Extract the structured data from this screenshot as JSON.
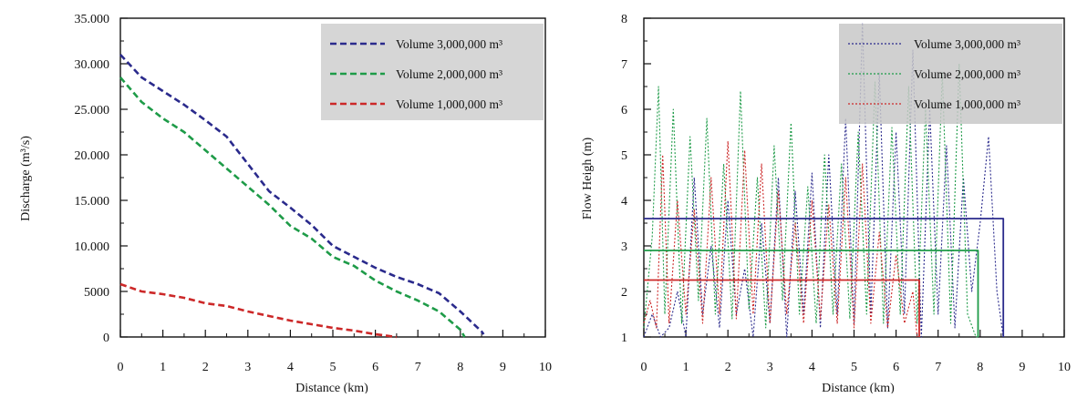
{
  "chart_data": [
    {
      "type": "line",
      "xlabel": "Distance (km)",
      "ylabel": "Discharge (m³/s)",
      "xlim": [
        0,
        10
      ],
      "ylim": [
        0,
        35000
      ],
      "x_ticks": [
        "0",
        "1",
        "2",
        "3",
        "4",
        "5",
        "6",
        "7",
        "8",
        "9",
        "10"
      ],
      "y_ticks": [
        {
          "value": 35000,
          "label": "35.000"
        },
        {
          "value": 30000,
          "label": "30.000"
        },
        {
          "value": 25000,
          "label": "25.000"
        },
        {
          "value": 20000,
          "label": "20.000"
        },
        {
          "value": 15000,
          "label": "15.000"
        },
        {
          "value": 10000,
          "label": "10.000"
        },
        {
          "value": 5000,
          "label": "5000"
        },
        {
          "value": 0,
          "label": "0"
        }
      ],
      "grid": false,
      "legend_position": "top-right",
      "series": [
        {
          "name": "Volume 3,000,000 m³",
          "color": "#2a2a8c",
          "style": "dashed",
          "x": [
            0,
            0.5,
            1,
            1.5,
            2,
            2.5,
            3,
            3.5,
            4,
            4.5,
            5,
            5.5,
            6,
            6.5,
            7,
            7.5,
            8,
            8.5,
            8.55
          ],
          "y": [
            31000,
            28500,
            27000,
            25500,
            23800,
            22000,
            19000,
            16000,
            14200,
            12300,
            10000,
            8800,
            7600,
            6600,
            5800,
            4800,
            2800,
            600,
            300
          ]
        },
        {
          "name": "Volume 2,000,000 m³",
          "color": "#1e9b48",
          "style": "dashed",
          "x": [
            0,
            0.5,
            1,
            1.5,
            2,
            2.5,
            3,
            3.5,
            4,
            4.5,
            5,
            5.5,
            6,
            6.5,
            7,
            7.5,
            8,
            8.1
          ],
          "y": [
            28500,
            25800,
            24000,
            22500,
            20500,
            18500,
            16500,
            14500,
            12200,
            10800,
            8800,
            7800,
            6200,
            5000,
            4000,
            2800,
            800,
            0
          ]
        },
        {
          "name": "Volume 1,000,000 m³",
          "color": "#cc2828",
          "style": "dashed",
          "x": [
            0,
            0.5,
            1,
            1.5,
            2,
            2.5,
            3,
            3.5,
            4,
            4.5,
            5,
            5.5,
            6,
            6.5
          ],
          "y": [
            5800,
            5000,
            4700,
            4300,
            3700,
            3400,
            2800,
            2300,
            1800,
            1400,
            1000,
            700,
            300,
            0
          ]
        }
      ]
    },
    {
      "type": "line",
      "xlabel": "Distance (km)",
      "ylabel": "Flow Heigh (m)",
      "xlim": [
        0,
        10
      ],
      "ylim": [
        1,
        8
      ],
      "x_ticks": [
        "0",
        "1",
        "2",
        "3",
        "4",
        "5",
        "6",
        "7",
        "8",
        "9",
        "10"
      ],
      "y_ticks": [
        "1",
        "2",
        "3",
        "4",
        "5",
        "6",
        "7",
        "8"
      ],
      "grid": false,
      "legend_position": "top-right",
      "series": [
        {
          "name": "Volume 3,000,000 m³",
          "color": "#2a2a8c",
          "style": "dotted",
          "x": [
            0,
            0.2,
            0.4,
            0.6,
            0.8,
            1.0,
            1.2,
            1.4,
            1.6,
            1.8,
            2.0,
            2.2,
            2.4,
            2.6,
            2.8,
            3.0,
            3.2,
            3.4,
            3.6,
            3.8,
            4.0,
            4.2,
            4.4,
            4.6,
            4.8,
            5.0,
            5.2,
            5.4,
            5.6,
            5.8,
            6.0,
            6.2,
            6.4,
            6.6,
            6.8,
            7.0,
            7.2,
            7.4,
            7.6,
            7.8,
            8.0,
            8.2,
            8.4,
            8.55
          ],
          "y": [
            1.0,
            1.5,
            1.0,
            1.2,
            2.0,
            1.0,
            4.5,
            1.5,
            3.0,
            1.2,
            4.0,
            1.5,
            2.5,
            1.0,
            3.5,
            1.3,
            4.5,
            1.0,
            4.2,
            1.5,
            4.6,
            1.2,
            5.0,
            1.5,
            5.8,
            1.3,
            7.9,
            1.5,
            6.8,
            1.2,
            5.5,
            1.5,
            7.3,
            1.0,
            6.0,
            1.5,
            5.2,
            1.2,
            4.5,
            2.0,
            3.5,
            5.4,
            2.0,
            1.0
          ]
        },
        {
          "name": "Volume 2,000,000 m³",
          "color": "#1e9b48",
          "style": "dotted",
          "x": [
            0,
            0.2,
            0.35,
            0.5,
            0.7,
            0.9,
            1.1,
            1.3,
            1.5,
            1.7,
            1.9,
            2.1,
            2.3,
            2.5,
            2.7,
            2.9,
            3.1,
            3.3,
            3.5,
            3.7,
            3.9,
            4.1,
            4.3,
            4.5,
            4.7,
            4.9,
            5.1,
            5.3,
            5.5,
            5.7,
            5.9,
            6.1,
            6.3,
            6.5,
            6.7,
            6.9,
            7.1,
            7.3,
            7.5,
            7.7,
            7.9,
            7.95
          ],
          "y": [
            1.2,
            3.2,
            6.5,
            1.5,
            6.0,
            1.3,
            5.4,
            1.8,
            5.8,
            1.5,
            4.8,
            1.4,
            6.4,
            1.6,
            4.5,
            1.2,
            5.2,
            1.8,
            5.7,
            1.5,
            4.3,
            1.3,
            5.0,
            1.5,
            4.8,
            1.4,
            5.5,
            1.5,
            6.6,
            1.3,
            5.6,
            1.5,
            6.5,
            1.3,
            6.0,
            1.5,
            6.8,
            1.3,
            7.0,
            1.5,
            1.0,
            1.0
          ]
        },
        {
          "name": "Volume 1,000,000 m³",
          "color": "#cc2828",
          "style": "dotted",
          "x": [
            0,
            0.15,
            0.3,
            0.45,
            0.6,
            0.8,
            1.0,
            1.2,
            1.4,
            1.6,
            1.8,
            2.0,
            2.2,
            2.4,
            2.6,
            2.8,
            3.0,
            3.2,
            3.4,
            3.6,
            3.8,
            4.0,
            4.2,
            4.4,
            4.6,
            4.8,
            5.0,
            5.2,
            5.4,
            5.6,
            5.8,
            6.0,
            6.2,
            6.4,
            6.5
          ],
          "y": [
            1.3,
            1.8,
            1.2,
            5.0,
            1.3,
            4.0,
            1.5,
            3.8,
            1.3,
            4.5,
            1.5,
            5.3,
            1.4,
            5.1,
            1.5,
            4.8,
            1.3,
            4.2,
            1.5,
            3.5,
            1.3,
            4.0,
            1.4,
            3.9,
            1.3,
            4.5,
            1.2,
            4.8,
            1.3,
            3.3,
            1.2,
            2.8,
            1.3,
            2.0,
            1.0
          ]
        },
        {
          "name": "Volume 3,000,000 m³",
          "color": "#2a2a8c",
          "style": "solid",
          "in_legend": false,
          "x": [
            0,
            8.55,
            8.55
          ],
          "y": [
            3.6,
            3.6,
            1.0
          ]
        },
        {
          "name": "Volume 2,000,000 m³",
          "color": "#1e9b48",
          "style": "solid",
          "in_legend": false,
          "x": [
            0,
            7.95,
            7.95
          ],
          "y": [
            2.9,
            2.9,
            1.0
          ]
        },
        {
          "name": "Volume 1,000,000 m³",
          "color": "#cc2828",
          "style": "solid",
          "in_legend": false,
          "x": [
            0,
            6.55,
            6.55
          ],
          "y": [
            2.25,
            2.25,
            1.0
          ]
        }
      ]
    }
  ]
}
